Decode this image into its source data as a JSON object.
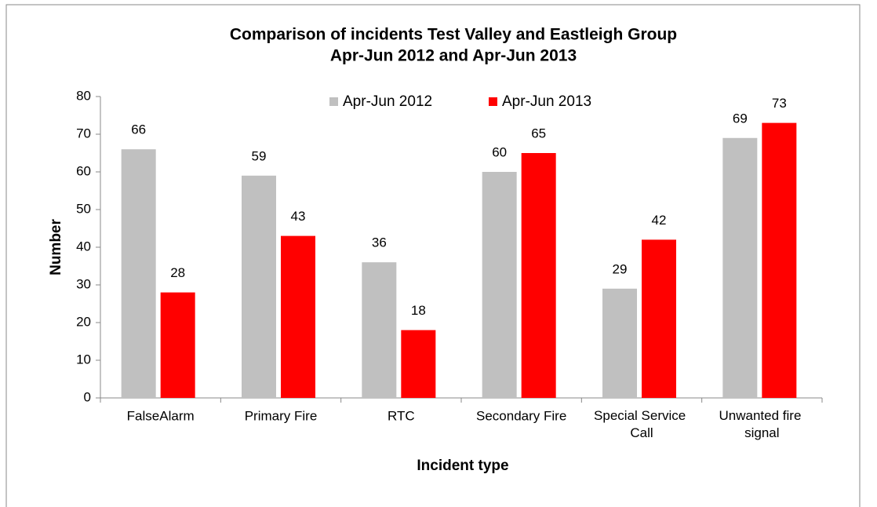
{
  "chart_data": {
    "type": "bar",
    "title": "Comparison of incidents Test Valley and Eastleigh Group",
    "subtitle": "Apr-Jun 2012 and Apr-Jun 2013",
    "x_label": "Incident type",
    "y_label": "Number",
    "categories": [
      "FalseAlarm",
      "Primary Fire",
      "RTC",
      "Secondary Fire",
      "Special Service Call",
      "Unwanted fire signal"
    ],
    "series": [
      {
        "name": "Apr-Jun 2012",
        "color": "#c0c0c0",
        "values": [
          66,
          59,
          36,
          60,
          29,
          69
        ]
      },
      {
        "name": "Apr-Jun 2013",
        "color": "#ff0000",
        "values": [
          28,
          43,
          18,
          65,
          42,
          73
        ]
      }
    ],
    "ylim": [
      0,
      80
    ],
    "yticks": [
      0,
      10,
      20,
      30,
      40,
      50,
      60,
      70,
      80
    ],
    "legend": "top",
    "grid": false
  }
}
